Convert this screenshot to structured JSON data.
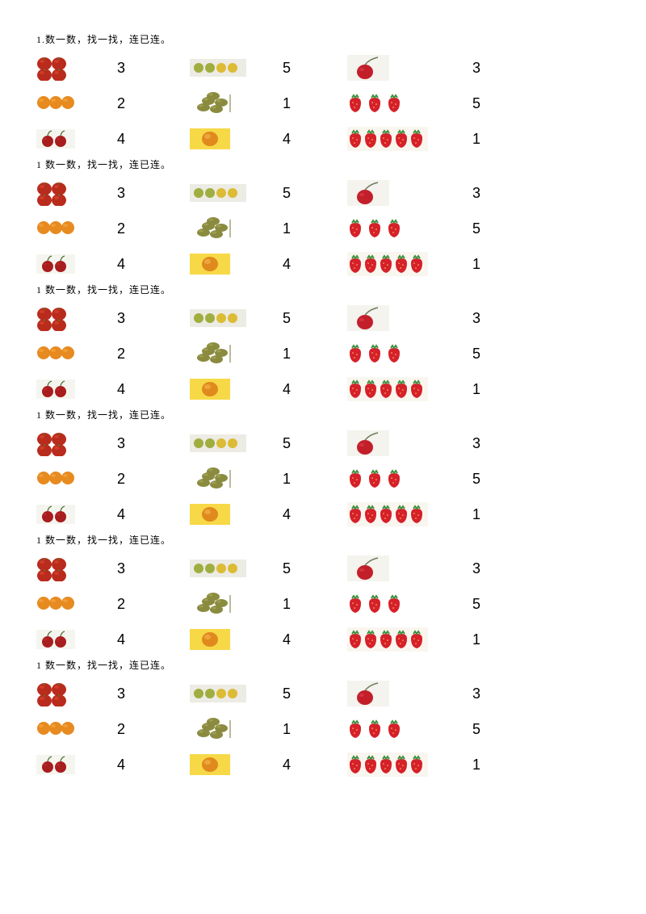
{
  "colors": {
    "tomato": "#b92b1c",
    "tomato_hi": "#d9442e",
    "orange": "#e78a1f",
    "orange_hi": "#f2a33b",
    "cherry": "#a81d1d",
    "lime_green": "#9fae3e",
    "lime_yellow": "#dcbb35",
    "olive": "#8a8b3f",
    "olive_hi": "#a5a658",
    "yolk_bg": "#f7d948",
    "yolk": "#e08a1d",
    "cherry_single": "#c21f2a",
    "strawberry": "#d6202a",
    "strawberry_leaf": "#3e8f3e",
    "text": "#000000",
    "bg": "#ffffff"
  },
  "typography": {
    "heading_fontsize": 12,
    "number_fontsize": 18,
    "number_font": "Arial"
  },
  "sections": [
    {
      "heading": "1.数一数，找一找，连已连。"
    },
    {
      "heading": "1 数一数，找一找，连已连。"
    },
    {
      "heading": "1 数一数，找一找，连已连。"
    },
    {
      "heading": "1 数一数，找一找，连已连。"
    },
    {
      "heading": "1 数一数，找一找，连已连。"
    },
    {
      "heading": "1 数一数，找一找，连已连。"
    }
  ],
  "grid": {
    "rows": [
      {
        "img1": "tomato_pair_x2",
        "num1": "3",
        "img2": "lime_row",
        "num2": "5",
        "img3": "cherry_single",
        "num3": "3"
      },
      {
        "img1": "orange_triple",
        "num1": "2",
        "img2": "olives",
        "num2": "1",
        "img3": "strawberry_3",
        "num3": "5"
      },
      {
        "img1": "cherry_pair",
        "num1": "4",
        "img2": "yolk",
        "num2": "4",
        "img3": "strawberry_5",
        "num3": "1"
      }
    ]
  }
}
